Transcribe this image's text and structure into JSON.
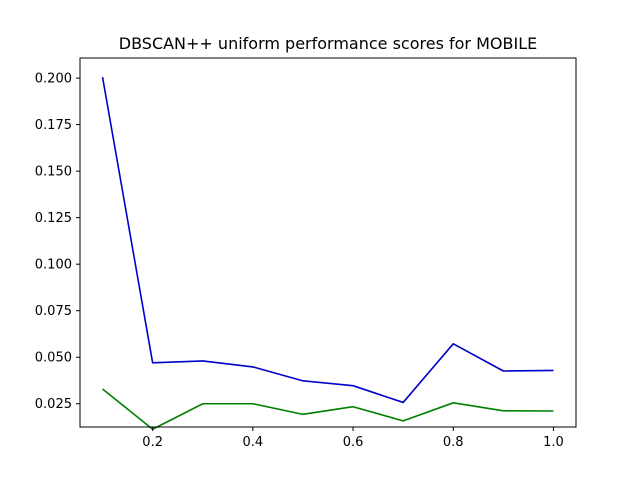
{
  "chart_data": {
    "type": "line",
    "title": "DBSCAN++ uniform performance scores for MOBILE",
    "xlabel": "",
    "ylabel": "",
    "x": [
      0.1,
      0.2,
      0.3,
      0.4,
      0.5,
      0.6,
      0.7,
      0.8,
      0.9,
      1.0
    ],
    "xlim": [
      0.055,
      1.045
    ],
    "ylim": [
      0.0125,
      0.2108
    ],
    "xticks": [
      "0.2",
      "0.4",
      "0.6",
      "0.8",
      "1.0"
    ],
    "xtick_values": [
      0.2,
      0.4,
      0.6,
      0.8,
      1.0
    ],
    "yticks": [
      "0.025",
      "0.050",
      "0.075",
      "0.100",
      "0.125",
      "0.150",
      "0.175",
      "0.200"
    ],
    "ytick_values": [
      0.025,
      0.05,
      0.075,
      0.1,
      0.125,
      0.15,
      0.175,
      0.2
    ],
    "grid": false,
    "series": [
      {
        "color": "#0000cc",
        "values": [
          0.2005,
          0.047,
          0.048,
          0.0448,
          0.0373,
          0.0347,
          0.0257,
          0.0572,
          0.0426,
          0.0429
        ]
      },
      {
        "color": "#008000",
        "values": [
          0.0329,
          0.0113,
          0.025,
          0.025,
          0.0193,
          0.0234,
          0.0158,
          0.0255,
          0.0212,
          0.0211
        ]
      }
    ]
  }
}
